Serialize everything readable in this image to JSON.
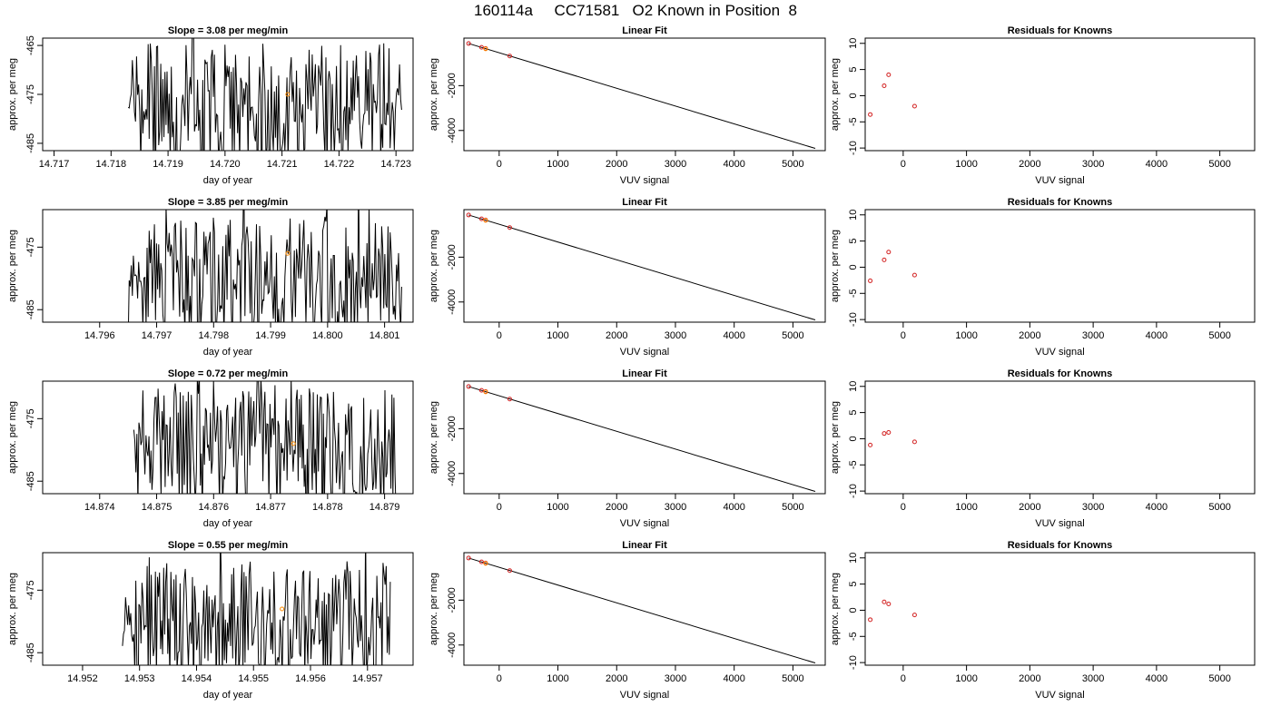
{
  "page_title": "160114a     CC71581   O2 Known in Position  8",
  "colors": {
    "trace": "#000000",
    "highlight": "#ff8c00",
    "residual": "#d22020",
    "frame": "#000000"
  },
  "chart_data": [
    {
      "type": "line",
      "row": 1,
      "col": 1,
      "title": "Slope =  3.08  per meg/min",
      "xlabel": "day of year",
      "ylabel": "approx. per meg",
      "xlim": [
        14.7168,
        14.7233
      ],
      "ylim": [
        -486.5,
        -463.5
      ],
      "xticks": [
        14.717,
        14.718,
        14.719,
        14.72,
        14.721,
        14.722,
        14.723
      ],
      "xtick_labels": [
        "14.717",
        "14.718",
        "14.719",
        "14.720",
        "14.721",
        "14.722",
        "14.723"
      ],
      "yticks": [
        -465,
        -475,
        -485
      ],
      "ytick_labels": [
        "-465",
        "-475",
        "-485"
      ],
      "trace_x_range": [
        14.7183,
        14.7231
      ],
      "highlight_point": {
        "x": 14.7211,
        "y": -475
      }
    },
    {
      "type": "line",
      "row": 1,
      "col": 2,
      "title": "Linear Fit",
      "xlabel": "VUV signal",
      "ylabel": "approx. per meg",
      "xlim": [
        -600,
        5550
      ],
      "ylim": [
        -4900,
        120
      ],
      "xticks": [
        0,
        1000,
        2000,
        3000,
        4000,
        5000
      ],
      "xtick_labels": [
        "0",
        "1000",
        "2000",
        "3000",
        "4000",
        "5000"
      ],
      "yticks": [
        -2000,
        -4000
      ],
      "ytick_labels": [
        "-2000",
        "-4000"
      ],
      "fit_line": {
        "x": [
          -520,
          5380
        ],
        "y": [
          -120,
          -4800
        ]
      },
      "points": [
        {
          "x": -520,
          "y": -120
        },
        {
          "x": -300,
          "y": -290
        },
        {
          "x": -230,
          "y": -340
        },
        {
          "x": 180,
          "y": -680
        }
      ],
      "highlight_point": {
        "x": -230,
        "y": -360
      }
    },
    {
      "type": "scatter",
      "row": 1,
      "col": 3,
      "title": "Residuals for Knowns",
      "xlabel": "VUV signal",
      "ylabel": "approx. per meg",
      "xlim": [
        -600,
        5550
      ],
      "ylim": [
        -10.5,
        11
      ],
      "xticks": [
        0,
        1000,
        2000,
        3000,
        4000,
        5000
      ],
      "xtick_labels": [
        "0",
        "1000",
        "2000",
        "3000",
        "4000",
        "5000"
      ],
      "yticks": [
        10,
        5,
        0,
        -5,
        -10
      ],
      "ytick_labels": [
        "10",
        "5",
        "0",
        "-5",
        "-10"
      ],
      "points": [
        {
          "x": -520,
          "y": -3.6
        },
        {
          "x": -300,
          "y": 1.9
        },
        {
          "x": -230,
          "y": 4.0
        },
        {
          "x": 180,
          "y": -2.0
        }
      ]
    },
    {
      "type": "line",
      "row": 2,
      "col": 1,
      "title": "Slope =  3.85  per meg/min",
      "xlabel": "day of year",
      "ylabel": "approx. per meg",
      "xlim": [
        14.795,
        14.8015
      ],
      "ylim": [
        -487,
        -469
      ],
      "xticks": [
        14.796,
        14.797,
        14.798,
        14.799,
        14.8,
        14.801
      ],
      "xtick_labels": [
        "14.796",
        "14.797",
        "14.798",
        "14.799",
        "14.800",
        "14.801"
      ],
      "yticks": [
        -475,
        -485
      ],
      "ytick_labels": [
        "-475",
        "-485"
      ],
      "trace_x_range": [
        14.7965,
        14.8013
      ],
      "highlight_point": {
        "x": 14.7993,
        "y": -476
      }
    },
    {
      "type": "line",
      "row": 2,
      "col": 2,
      "title": "Linear Fit",
      "xlabel": "VUV signal",
      "ylabel": "approx. per meg",
      "xlim": [
        -600,
        5550
      ],
      "ylim": [
        -4900,
        120
      ],
      "xticks": [
        0,
        1000,
        2000,
        3000,
        4000,
        5000
      ],
      "xtick_labels": [
        "0",
        "1000",
        "2000",
        "3000",
        "4000",
        "5000"
      ],
      "yticks": [
        -2000,
        -4000
      ],
      "ytick_labels": [
        "-2000",
        "-4000"
      ],
      "fit_line": {
        "x": [
          -520,
          5380
        ],
        "y": [
          -120,
          -4800
        ]
      },
      "points": [
        {
          "x": -520,
          "y": -120
        },
        {
          "x": -300,
          "y": -290
        },
        {
          "x": -230,
          "y": -340
        },
        {
          "x": 180,
          "y": -680
        }
      ],
      "highlight_point": {
        "x": -230,
        "y": -360
      }
    },
    {
      "type": "scatter",
      "row": 2,
      "col": 3,
      "title": "Residuals for Knowns",
      "xlabel": "VUV signal",
      "ylabel": "approx. per meg",
      "xlim": [
        -600,
        5550
      ],
      "ylim": [
        -10.5,
        11
      ],
      "xticks": [
        0,
        1000,
        2000,
        3000,
        4000,
        5000
      ],
      "xtick_labels": [
        "0",
        "1000",
        "2000",
        "3000",
        "4000",
        "5000"
      ],
      "yticks": [
        10,
        5,
        0,
        -5,
        -10
      ],
      "ytick_labels": [
        "10",
        "5",
        "0",
        "-5",
        "-10"
      ],
      "points": [
        {
          "x": -520,
          "y": -2.6
        },
        {
          "x": -300,
          "y": 1.4
        },
        {
          "x": -230,
          "y": 2.9
        },
        {
          "x": 180,
          "y": -1.5
        }
      ]
    },
    {
      "type": "line",
      "row": 3,
      "col": 1,
      "title": "Slope =  0.72  per meg/min",
      "xlabel": "day of year",
      "ylabel": "approx. per meg",
      "xlim": [
        14.873,
        14.8795
      ],
      "ylim": [
        -487,
        -469
      ],
      "xticks": [
        14.874,
        14.875,
        14.876,
        14.877,
        14.878,
        14.879
      ],
      "xtick_labels": [
        "14.874",
        "14.875",
        "14.876",
        "14.877",
        "14.878",
        "14.879"
      ],
      "yticks": [
        -475,
        -485
      ],
      "ytick_labels": [
        "-475",
        "-485"
      ],
      "trace_x_range": [
        14.8746,
        14.8792
      ],
      "highlight_point": {
        "x": 14.8774,
        "y": -479
      }
    },
    {
      "type": "line",
      "row": 3,
      "col": 2,
      "title": "Linear Fit",
      "xlabel": "VUV signal",
      "ylabel": "approx. per meg",
      "xlim": [
        -600,
        5550
      ],
      "ylim": [
        -4900,
        120
      ],
      "xticks": [
        0,
        1000,
        2000,
        3000,
        4000,
        5000
      ],
      "xtick_labels": [
        "0",
        "1000",
        "2000",
        "3000",
        "4000",
        "5000"
      ],
      "yticks": [
        -2000,
        -4000
      ],
      "ytick_labels": [
        "-2000",
        "-4000"
      ],
      "fit_line": {
        "x": [
          -520,
          5380
        ],
        "y": [
          -120,
          -4800
        ]
      },
      "points": [
        {
          "x": -520,
          "y": -120
        },
        {
          "x": -300,
          "y": -290
        },
        {
          "x": -230,
          "y": -340
        },
        {
          "x": 180,
          "y": -680
        }
      ],
      "highlight_point": {
        "x": -230,
        "y": -360
      }
    },
    {
      "type": "scatter",
      "row": 3,
      "col": 3,
      "title": "Residuals for Knowns",
      "xlabel": "VUV signal",
      "ylabel": "approx. per meg",
      "xlim": [
        -600,
        5550
      ],
      "ylim": [
        -10.5,
        11
      ],
      "xticks": [
        0,
        1000,
        2000,
        3000,
        4000,
        5000
      ],
      "xtick_labels": [
        "0",
        "1000",
        "2000",
        "3000",
        "4000",
        "5000"
      ],
      "yticks": [
        10,
        5,
        0,
        -5,
        -10
      ],
      "ytick_labels": [
        "10",
        "5",
        "0",
        "-5",
        "-10"
      ],
      "points": [
        {
          "x": -520,
          "y": -1.2
        },
        {
          "x": -300,
          "y": 1.0
        },
        {
          "x": -230,
          "y": 1.2
        },
        {
          "x": 180,
          "y": -0.6
        }
      ]
    },
    {
      "type": "line",
      "row": 4,
      "col": 1,
      "title": "Slope =  0.55  per meg/min",
      "xlabel": "day of year",
      "ylabel": "approx. per meg",
      "xlim": [
        14.9513,
        14.9578
      ],
      "ylim": [
        -487,
        -469
      ],
      "xticks": [
        14.952,
        14.953,
        14.954,
        14.955,
        14.956,
        14.957
      ],
      "xtick_labels": [
        "14.952",
        "14.953",
        "14.954",
        "14.955",
        "14.956",
        "14.957"
      ],
      "yticks": [
        -475,
        -485
      ],
      "ytick_labels": [
        "-475",
        "-485"
      ],
      "trace_x_range": [
        14.9527,
        14.9574
      ],
      "highlight_point": {
        "x": 14.9555,
        "y": -478
      }
    },
    {
      "type": "line",
      "row": 4,
      "col": 2,
      "title": "Linear Fit",
      "xlabel": "VUV signal",
      "ylabel": "approx. per meg",
      "xlim": [
        -600,
        5550
      ],
      "ylim": [
        -4900,
        120
      ],
      "xticks": [
        0,
        1000,
        2000,
        3000,
        4000,
        5000
      ],
      "xtick_labels": [
        "0",
        "1000",
        "2000",
        "3000",
        "4000",
        "5000"
      ],
      "yticks": [
        -2000,
        -4000
      ],
      "ytick_labels": [
        "-2000",
        "-4000"
      ],
      "fit_line": {
        "x": [
          -520,
          5380
        ],
        "y": [
          -120,
          -4800
        ]
      },
      "points": [
        {
          "x": -520,
          "y": -120
        },
        {
          "x": -300,
          "y": -290
        },
        {
          "x": -230,
          "y": -340
        },
        {
          "x": 180,
          "y": -680
        }
      ],
      "highlight_point": {
        "x": -230,
        "y": -360
      }
    },
    {
      "type": "scatter",
      "row": 4,
      "col": 3,
      "title": "Residuals for Knowns",
      "xlabel": "VUV signal",
      "ylabel": "approx. per meg",
      "xlim": [
        -600,
        5550
      ],
      "ylim": [
        -10.5,
        11
      ],
      "xticks": [
        0,
        1000,
        2000,
        3000,
        4000,
        5000
      ],
      "xtick_labels": [
        "0",
        "1000",
        "2000",
        "3000",
        "4000",
        "5000"
      ],
      "yticks": [
        10,
        5,
        0,
        -5,
        -10
      ],
      "ytick_labels": [
        "10",
        "5",
        "0",
        "-5",
        "-10"
      ],
      "points": [
        {
          "x": -520,
          "y": -1.8
        },
        {
          "x": -300,
          "y": 1.6
        },
        {
          "x": -230,
          "y": 1.2
        },
        {
          "x": 180,
          "y": -0.9
        }
      ]
    }
  ]
}
